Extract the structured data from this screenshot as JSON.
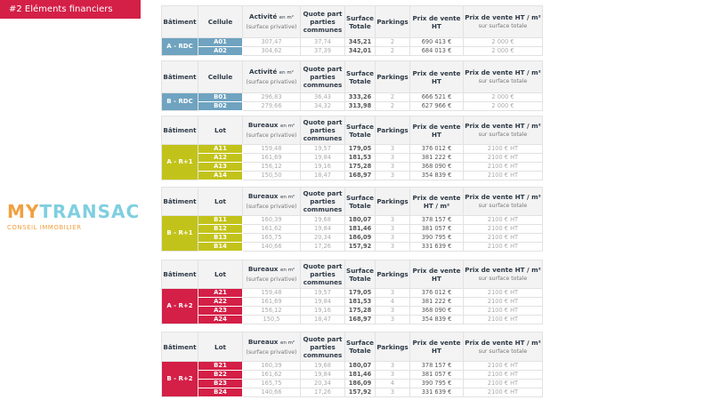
{
  "title": "#2 Eléments financiers",
  "colors": {
    "blue": "#6fa3c0",
    "olive": "#c2c31a",
    "red": "#d41f47",
    "title_bg": "#d41f47"
  },
  "watermark": {
    "brand_left": "MY",
    "brand_right": "TRANSAC",
    "tagline": "CONSEIL IMMOBILIER"
  },
  "tables": [
    {
      "headers": {
        "batiment": "Bâtiment",
        "lot": "Cellule",
        "surface_main": "Activité",
        "surface_unit": "en m²",
        "surface_sub": "(surface privative)",
        "quote": "Quote part parties communes",
        "total": "Surface Totale",
        "parkings": "Parkings",
        "prix": "Prix de vente HT",
        "prix_m2": "Prix de vente HT / m²",
        "prix_m2_sub": "sur surface totale"
      },
      "batiment": "A - RDC",
      "color": "blue",
      "rows": [
        {
          "lot": "A01",
          "surface": "307,47",
          "quote": "37,74",
          "total": "345,21",
          "parkings": "2",
          "prix": "690 413 €",
          "prix_m2": "2 000 €"
        },
        {
          "lot": "A02",
          "surface": "304,62",
          "quote": "37,39",
          "total": "342,01",
          "parkings": "2",
          "prix": "684 013 €",
          "prix_m2": "2 000 €"
        }
      ]
    },
    {
      "headers": {
        "batiment": "Bâtiment",
        "lot": "Cellule",
        "surface_main": "Activité",
        "surface_unit": "en m²",
        "surface_sub": "(surface privative)",
        "quote": "Quote part parties communes",
        "total": "Surface Totale",
        "parkings": "Parkings",
        "prix": "Prix de vente HT",
        "prix_m2": "Prix de vente HT / m²",
        "prix_m2_sub": "sur surface totale"
      },
      "batiment": "B - RDC",
      "color": "blue",
      "rows": [
        {
          "lot": "B01",
          "surface": "296,83",
          "quote": "36,43",
          "total": "333,26",
          "parkings": "2",
          "prix": "666 521 €",
          "prix_m2": "2 000 €"
        },
        {
          "lot": "B02",
          "surface": "279,66",
          "quote": "34,32",
          "total": "313,98",
          "parkings": "2",
          "prix": "627 966 €",
          "prix_m2": "2 000 €"
        }
      ]
    },
    {
      "headers": {
        "batiment": "Bâtiment",
        "lot": "Lot",
        "surface_main": "Bureaux",
        "surface_unit": "en m²",
        "surface_sub": "(surface privative)",
        "quote": "Quote part parties communes",
        "total": "Surface Totale",
        "parkings": "Parkings",
        "prix": "Prix de vente HT",
        "prix_m2": "Prix de vente HT / m²",
        "prix_m2_sub": "sur surface totale"
      },
      "batiment": "A - R+1",
      "color": "olive",
      "rows": [
        {
          "lot": "A11",
          "surface": "159,48",
          "quote": "19,57",
          "total": "179,05",
          "parkings": "3",
          "prix": "376 012 €",
          "prix_m2": "2100 € HT"
        },
        {
          "lot": "A12",
          "surface": "161,69",
          "quote": "19,84",
          "total": "181,53",
          "parkings": "3",
          "prix": "381 222 €",
          "prix_m2": "2100 € HT"
        },
        {
          "lot": "A13",
          "surface": "156,12",
          "quote": "19,16",
          "total": "175,28",
          "parkings": "3",
          "prix": "368 090 €",
          "prix_m2": "2100 € HT"
        },
        {
          "lot": "A14",
          "surface": "150,50",
          "quote": "18,47",
          "total": "168,97",
          "parkings": "3",
          "prix": "354 839 €",
          "prix_m2": "2100 € HT"
        }
      ]
    },
    {
      "headers": {
        "batiment": "Bâtiment",
        "lot": "Lot",
        "surface_main": "Bureaux",
        "surface_unit": "en m²",
        "surface_sub": "(surface privative)",
        "quote": "Quote part parties communes",
        "total": "Surface Totale",
        "parkings": "Parkings",
        "prix": "Prix de vente HT / m²",
        "prix_m2": "Prix de vente HT / m²",
        "prix_m2_sub": "sur surface totale"
      },
      "batiment": "B - R+1",
      "color": "olive",
      "rows": [
        {
          "lot": "B11",
          "surface": "160,39",
          "quote": "19,68",
          "total": "180,07",
          "parkings": "3",
          "prix": "378 157 €",
          "prix_m2": "2100 € HT"
        },
        {
          "lot": "B12",
          "surface": "161,62",
          "quote": "19,84",
          "total": "181,46",
          "parkings": "3",
          "prix": "381 057 €",
          "prix_m2": "2100 € HT"
        },
        {
          "lot": "B13",
          "surface": "165,75",
          "quote": "20,34",
          "total": "186,09",
          "parkings": "3",
          "prix": "390 795 €",
          "prix_m2": "2100 € HT"
        },
        {
          "lot": "B14",
          "surface": "140,66",
          "quote": "17,26",
          "total": "157,92",
          "parkings": "3",
          "prix": "331 639 €",
          "prix_m2": "2100 € HT"
        }
      ]
    },
    {
      "headers": {
        "batiment": "Bâtiment",
        "lot": "Lot",
        "surface_main": "Bureaux",
        "surface_unit": "en m²",
        "surface_sub": "(surface privative)",
        "quote": "Quote part parties communes",
        "total": "Surface Totale",
        "parkings": "Parkings",
        "prix": "Prix de vente HT",
        "prix_m2": "Prix de vente HT / m²",
        "prix_m2_sub": "sur surface totale"
      },
      "batiment": "A - R+2",
      "color": "red",
      "rows": [
        {
          "lot": "A21",
          "surface": "159,48",
          "quote": "19,57",
          "total": "179,05",
          "parkings": "3",
          "prix": "376 012 €",
          "prix_m2": "2100 € HT"
        },
        {
          "lot": "A22",
          "surface": "161,69",
          "quote": "19,84",
          "total": "181,53",
          "parkings": "4",
          "prix": "381 222 €",
          "prix_m2": "2100 € HT"
        },
        {
          "lot": "A23",
          "surface": "156,12",
          "quote": "19,16",
          "total": "175,28",
          "parkings": "3",
          "prix": "368 090 €",
          "prix_m2": "2100 € HT"
        },
        {
          "lot": "A24",
          "surface": "150,5",
          "quote": "18,47",
          "total": "168,97",
          "parkings": "3",
          "prix": "354 839 €",
          "prix_m2": "2100 € HT"
        }
      ]
    },
    {
      "headers": {
        "batiment": "Bâtiment",
        "lot": "Lot",
        "surface_main": "Bureaux",
        "surface_unit": "en m²",
        "surface_sub": "(surface privative)",
        "quote": "Quote part parties communes",
        "total": "Surface Totale",
        "parkings": "Parkings",
        "prix": "Prix de vente HT",
        "prix_m2": "Prix de vente HT / m²",
        "prix_m2_sub": "sur surface totale"
      },
      "batiment": "B - R+2",
      "color": "red",
      "rows": [
        {
          "lot": "B21",
          "surface": "160,39",
          "quote": "19,68",
          "total": "180,07",
          "parkings": "3",
          "prix": "378 157 €",
          "prix_m2": "2100 € HT"
        },
        {
          "lot": "B22",
          "surface": "161,62",
          "quote": "19,84",
          "total": "181,46",
          "parkings": "3",
          "prix": "381 057 €",
          "prix_m2": "2100 € HT"
        },
        {
          "lot": "B23",
          "surface": "165,75",
          "quote": "20,34",
          "total": "186,09",
          "parkings": "4",
          "prix": "390 795 €",
          "prix_m2": "2100 € HT"
        },
        {
          "lot": "B24",
          "surface": "140,66",
          "quote": "17,26",
          "total": "157,92",
          "parkings": "3",
          "prix": "331 639 €",
          "prix_m2": "2100 € HT"
        }
      ]
    }
  ]
}
